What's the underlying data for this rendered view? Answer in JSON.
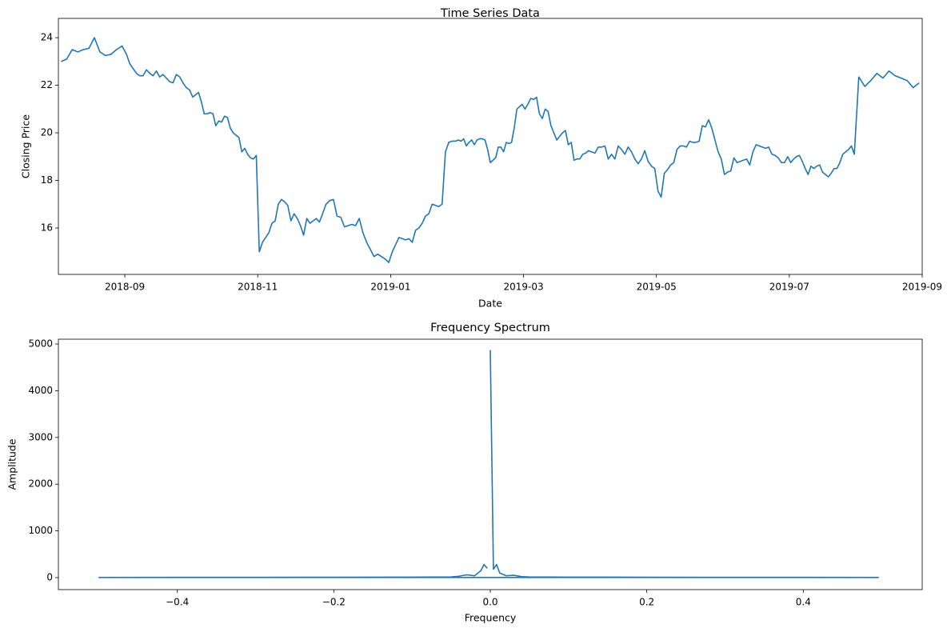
{
  "chart_data": [
    {
      "type": "line",
      "title": "Time Series Data",
      "xlabel": "Date",
      "ylabel": "Closing Price",
      "color": "#1f77b4",
      "xlim": [
        "2018-08",
        "2019-09"
      ],
      "xticks": [
        "2018-09",
        "2018-11",
        "2019-01",
        "2019-03",
        "2019-05",
        "2019-07",
        "2019-09"
      ],
      "ylim": [
        14.05,
        24.81
      ],
      "yticks": [
        16,
        18,
        20,
        22,
        24
      ],
      "x": [
        "2018-08",
        "2018-08",
        "2018-08",
        "2018-08",
        "2018-08",
        "2018-08",
        "2018-08",
        "2018-08",
        "2018-08",
        "2018-08",
        "2018-08",
        "2018-08",
        "2018-09",
        "2018-09",
        "2018-09",
        "2018-09",
        "2018-09",
        "2018-09",
        "2018-09",
        "2018-09",
        "2018-09",
        "2018-09",
        "2018-09",
        "2018-09",
        "2018-09",
        "2018-09",
        "2018-09",
        "2018-09",
        "2018-09",
        "2018-09",
        "2018-09",
        "2018-09",
        "2018-10",
        "2018-10",
        "2018-10",
        "2018-10",
        "2018-10",
        "2018-10",
        "2018-10",
        "2018-10",
        "2018-10",
        "2018-10",
        "2018-10",
        "2018-10",
        "2018-10",
        "2018-10",
        "2018-10",
        "2018-10",
        "2018-10",
        "2018-10",
        "2018-10",
        "2018-10",
        "2018-10",
        "2018-10",
        "2018-10",
        "2018-11",
        "2018-11",
        "2018-11",
        "2018-11",
        "2018-11",
        "2018-11",
        "2018-11",
        "2018-11",
        "2018-11",
        "2018-11",
        "2018-11",
        "2018-11",
        "2018-11",
        "2018-11",
        "2018-11",
        "2018-11",
        "2018-11",
        "2018-11",
        "2018-11",
        "2018-11",
        "2018-11",
        "2018-12",
        "2018-12",
        "2018-12",
        "2018-12",
        "2018-12",
        "2018-12",
        "2018-12",
        "2018-12",
        "2018-12",
        "2018-12",
        "2018-12",
        "2018-12",
        "2018-12",
        "2018-12",
        "2018-12",
        "2018-12",
        "2018-12",
        "2018-12",
        "2019-01",
        "2019-01",
        "2019-01",
        "2019-01",
        "2019-01",
        "2019-01",
        "2019-01",
        "2019-01",
        "2019-01",
        "2019-01",
        "2019-01",
        "2019-01",
        "2019-01",
        "2019-01",
        "2019-01",
        "2019-01",
        "2019-01",
        "2019-01",
        "2019-01",
        "2019-01",
        "2019-02",
        "2019-02",
        "2019-02",
        "2019-02",
        "2019-02",
        "2019-02",
        "2019-02",
        "2019-02",
        "2019-02",
        "2019-02",
        "2019-02",
        "2019-02",
        "2019-02",
        "2019-02",
        "2019-02",
        "2019-02",
        "2019-02",
        "2019-02",
        "2019-02",
        "2019-02",
        "2019-02",
        "2019-02",
        "2019-02",
        "2019-02",
        "2019-02",
        "2019-03",
        "2019-03",
        "2019-03",
        "2019-03",
        "2019-03",
        "2019-03",
        "2019-03",
        "2019-03",
        "2019-03",
        "2019-03",
        "2019-03",
        "2019-03",
        "2019-03",
        "2019-03",
        "2019-03",
        "2019-03",
        "2019-03",
        "2019-03",
        "2019-03",
        "2019-03",
        "2019-03",
        "2019-03",
        "2019-03",
        "2019-04",
        "2019-04",
        "2019-04",
        "2019-04",
        "2019-04",
        "2019-04",
        "2019-04",
        "2019-04",
        "2019-04",
        "2019-04",
        "2019-04",
        "2019-04",
        "2019-04",
        "2019-04",
        "2019-04",
        "2019-04",
        "2019-04",
        "2019-04",
        "2019-04",
        "2019-04",
        "2019-05",
        "2019-05",
        "2019-05",
        "2019-05",
        "2019-05",
        "2019-05",
        "2019-05",
        "2019-05",
        "2019-05",
        "2019-05",
        "2019-05",
        "2019-05",
        "2019-05",
        "2019-05",
        "2019-05",
        "2019-05",
        "2019-05",
        "2019-05",
        "2019-05",
        "2019-05",
        "2019-05",
        "2019-06",
        "2019-06",
        "2019-06",
        "2019-06",
        "2019-06",
        "2019-06",
        "2019-06",
        "2019-06",
        "2019-06",
        "2019-06",
        "2019-06",
        "2019-06",
        "2019-06",
        "2019-06",
        "2019-06",
        "2019-06",
        "2019-06",
        "2019-06",
        "2019-06",
        "2019-06",
        "2019-06",
        "2019-07",
        "2019-07",
        "2019-07",
        "2019-07",
        "2019-07",
        "2019-07",
        "2019-07",
        "2019-07",
        "2019-07",
        "2019-07",
        "2019-07",
        "2019-07",
        "2019-07",
        "2019-07",
        "2019-07",
        "2019-07",
        "2019-07",
        "2019-07",
        "2019-07",
        "2019-07",
        "2019-07",
        "2019-07",
        "2019-07",
        "2019-08",
        "2019-08",
        "2019-08",
        "2019-08",
        "2019-08",
        "2019-08",
        "2019-08",
        "2019-08",
        "2019-08",
        "2019-08",
        "2019-08"
      ],
      "values": [
        23.0,
        23.1,
        23.5,
        23.4,
        23.5,
        23.55,
        24.0,
        23.4,
        23.25,
        23.3,
        23.5,
        23.65,
        23.3,
        22.9,
        22.7,
        22.5,
        22.4,
        22.4,
        22.65,
        22.5,
        22.4,
        22.6,
        22.35,
        22.45,
        22.3,
        22.15,
        22.1,
        22.45,
        22.35,
        22.1,
        21.9,
        21.8,
        21.5,
        21.6,
        21.7,
        21.3,
        20.8,
        20.8,
        20.85,
        20.8,
        20.3,
        20.5,
        20.45,
        20.7,
        20.65,
        20.2,
        20.0,
        19.9,
        19.8,
        19.2,
        19.35,
        19.1,
        18.95,
        18.9,
        19.05,
        15.0,
        15.4,
        15.6,
        15.8,
        16.2,
        16.3,
        17.0,
        17.2,
        17.1,
        16.95,
        16.3,
        16.6,
        16.4,
        16.1,
        15.7,
        16.4,
        16.2,
        16.3,
        16.4,
        16.25,
        16.6,
        17.0,
        17.15,
        17.2,
        16.5,
        16.45,
        16.05,
        16.1,
        16.15,
        16.1,
        16.4,
        15.8,
        15.4,
        15.1,
        14.8,
        14.9,
        14.8,
        14.7,
        14.55,
        15.0,
        15.3,
        15.6,
        15.55,
        15.5,
        15.55,
        15.4,
        15.9,
        16.0,
        16.2,
        16.5,
        16.6,
        17.0,
        16.95,
        16.9,
        17.0,
        19.2,
        19.6,
        19.65,
        19.65,
        19.7,
        19.65,
        19.75,
        19.45,
        19.6,
        19.7,
        19.5,
        19.7,
        19.75,
        19.75,
        19.7,
        19.3,
        18.75,
        18.85,
        18.95,
        19.4,
        19.4,
        19.2,
        19.6,
        19.55,
        19.6,
        20.2,
        21.0,
        21.1,
        21.2,
        21.0,
        21.2,
        21.45,
        21.4,
        21.5,
        20.8,
        20.6,
        21.0,
        20.9,
        20.3,
        20.0,
        19.7,
        19.85,
        20.0,
        20.1,
        19.5,
        19.6,
        18.85,
        18.9,
        18.9,
        19.1,
        19.15,
        19.25,
        19.2,
        19.15,
        19.4,
        19.4,
        19.45,
        18.9,
        19.1,
        18.9,
        19.45,
        19.3,
        19.1,
        19.4,
        19.2,
        18.9,
        18.7,
        18.9,
        19.25,
        18.8,
        18.6,
        18.5,
        17.55,
        17.3,
        18.3,
        18.45,
        18.65,
        18.75,
        19.3,
        19.45,
        19.45,
        19.4,
        19.65,
        19.6,
        19.6,
        19.65,
        20.3,
        20.25,
        20.55,
        20.2,
        19.7,
        19.2,
        18.9,
        18.25,
        18.35,
        18.4,
        18.95,
        18.75,
        18.8,
        18.85,
        18.9,
        18.65,
        19.2,
        19.5,
        19.45,
        19.4,
        19.35,
        19.4,
        19.1,
        19.05,
        18.95,
        18.75,
        18.75,
        19.0,
        18.75,
        18.9,
        19.0,
        19.05,
        18.8,
        18.5,
        18.25,
        18.6,
        18.5,
        18.6,
        18.65,
        18.35,
        18.25,
        18.15,
        18.3,
        18.5,
        18.5,
        18.75,
        19.1,
        19.2,
        19.3,
        19.45,
        19.1,
        22.35,
        21.95,
        22.2,
        22.5,
        22.3,
        22.6,
        22.4,
        22.3,
        22.2,
        21.9,
        22.1
      ]
    },
    {
      "type": "line",
      "title": "Frequency Spectrum",
      "xlabel": "Frequency",
      "ylabel": "Amplitude",
      "color": "#1f77b4",
      "xlim": [
        -0.552,
        0.552
      ],
      "xticks": [
        {
          "value": -0.4,
          "label": "−0.4"
        },
        {
          "value": -0.2,
          "label": "−0.2"
        },
        {
          "value": 0,
          "label": "0.0"
        },
        0.2,
        0.4
      ],
      "ylim": [
        -257,
        5103
      ],
      "yticks": [
        0,
        1000,
        2000,
        3000,
        4000,
        5000
      ],
      "x": [
        0,
        0.004,
        0.008,
        0.012,
        0.02,
        0.03,
        0.04,
        0.05,
        0.1,
        0.2,
        0.3,
        0.4,
        0.496,
        -0.5,
        -0.4,
        -0.3,
        -0.2,
        -0.1,
        -0.05,
        -0.04,
        -0.03,
        -0.02,
        -0.012,
        -0.008,
        -0.004
      ],
      "values": [
        4870,
        180,
        280,
        100,
        40,
        50,
        20,
        15,
        10,
        8,
        5,
        5,
        3,
        3,
        5,
        5,
        8,
        10,
        15,
        30,
        60,
        40,
        150,
        280,
        200
      ]
    }
  ]
}
